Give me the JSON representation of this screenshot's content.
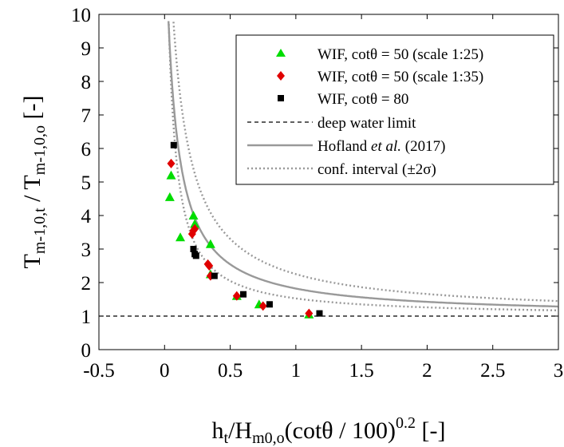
{
  "chart_data": {
    "type": "scatter",
    "title": "",
    "xlabel": {
      "main": "h",
      "sub1": "t",
      "mid": "/H",
      "sub2": "m0,o",
      "paren": "(cotθ / 100)",
      "sup": "0.2",
      "unit": " [-]"
    },
    "ylabel": {
      "main1": "T",
      "sub1": "m-1,0,t",
      "mid": " / T",
      "sub2": "m-1,0,o",
      "unit": " [-]"
    },
    "xlim": [
      -0.5,
      3
    ],
    "ylim": [
      0,
      10
    ],
    "xticks": [
      -0.5,
      0,
      0.5,
      1,
      1.5,
      2,
      2.5,
      3
    ],
    "xtick_labels": [
      "-0.5",
      "0",
      "0.5",
      "1",
      "1.5",
      "2",
      "2.5",
      "3"
    ],
    "yticks": [
      0,
      1,
      2,
      3,
      4,
      5,
      6,
      7,
      8,
      9,
      10
    ],
    "ytick_labels": [
      "0",
      "1",
      "2",
      "3",
      "4",
      "5",
      "6",
      "7",
      "8",
      "9",
      "10"
    ],
    "grid": false,
    "legend_position": "top-right",
    "series": [
      {
        "name": "WIF, cotθ = 50 (scale 1:25)",
        "marker": "triangle",
        "color": "#00dd00",
        "points": [
          [
            0.05,
            5.2
          ],
          [
            0.04,
            4.55
          ],
          [
            0.12,
            3.35
          ],
          [
            0.22,
            4.0
          ],
          [
            0.23,
            3.75
          ],
          [
            0.35,
            3.15
          ],
          [
            0.35,
            2.25
          ],
          [
            0.55,
            1.6
          ],
          [
            0.72,
            1.35
          ],
          [
            1.1,
            1.05
          ]
        ]
      },
      {
        "name": "WIF, cotθ = 50 (scale 1:35)",
        "marker": "diamond",
        "color": "#e00000",
        "points": [
          [
            0.05,
            5.55
          ],
          [
            0.22,
            3.55
          ],
          [
            0.21,
            3.45
          ],
          [
            0.23,
            3.6
          ],
          [
            0.33,
            2.55
          ],
          [
            0.34,
            2.5
          ],
          [
            0.35,
            2.2
          ],
          [
            0.55,
            1.6
          ],
          [
            0.75,
            1.3
          ],
          [
            1.1,
            1.08
          ]
        ]
      },
      {
        "name": "WIF, cotθ = 80",
        "marker": "square",
        "color": "#000000",
        "points": [
          [
            0.07,
            6.1
          ],
          [
            0.22,
            3.0
          ],
          [
            0.23,
            2.85
          ],
          [
            0.24,
            2.8
          ],
          [
            0.38,
            2.2
          ],
          [
            0.6,
            1.65
          ],
          [
            0.8,
            1.35
          ],
          [
            1.18,
            1.08
          ]
        ]
      }
    ],
    "lines": [
      {
        "name": "deep water limit",
        "style": "dashed",
        "color": "#000000",
        "y": 1
      },
      {
        "name": "Hofland et al. (2017)",
        "style": "solid",
        "color": "#999999"
      },
      {
        "name": "conf. interval (±2σ)",
        "style": "dotted",
        "color": "#999999"
      }
    ],
    "legend": {
      "entries": [
        {
          "text": "WIF, cotθ = 50 (scale 1:25)"
        },
        {
          "text": "WIF, cotθ = 50 (scale 1:35)"
        },
        {
          "text": "WIF, cotθ = 80"
        },
        {
          "text": "deep water limit"
        },
        {
          "prefix": "Hofland ",
          "italic": "et al.",
          "suffix": " (2017)"
        },
        {
          "text": "conf. interval (±2σ)"
        }
      ]
    }
  }
}
